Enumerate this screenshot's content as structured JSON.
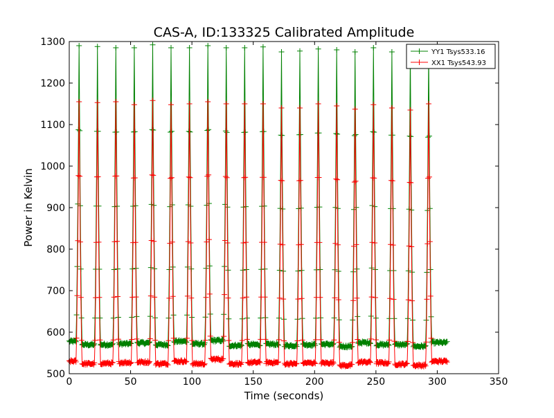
{
  "chart_data": {
    "type": "line",
    "title": "CAS-A, ID:133325 Calibrated Amplitude",
    "xlabel": "Time (seconds)",
    "ylabel": "Power in Kelvin",
    "xlim": [
      0,
      350
    ],
    "ylim": [
      500,
      1300
    ],
    "xticks": [
      "0",
      "50",
      "100",
      "150",
      "200",
      "250",
      "300",
      "350"
    ],
    "yticks": [
      "500",
      "600",
      "700",
      "800",
      "900",
      "1000",
      "1100",
      "1200",
      "1300"
    ],
    "grid": false,
    "legend_position": "top-right",
    "peak_times": [
      8,
      23,
      38,
      53,
      68,
      83,
      98,
      113,
      128,
      143,
      158,
      173,
      188,
      203,
      218,
      233,
      248,
      263,
      278,
      293
    ],
    "series": [
      {
        "name": "YY1 Tsys533.16",
        "color": "#008000",
        "baseline": [
          578,
          570,
          570,
          572,
          574,
          570,
          578,
          572,
          580,
          568,
          570,
          571,
          568,
          570,
          571,
          566,
          575,
          570,
          570,
          566,
          575
        ],
        "peaks": [
          1290,
          1288,
          1285,
          1285,
          1292,
          1285,
          1285,
          1290,
          1285,
          1285,
          1287,
          1275,
          1277,
          1282,
          1280,
          1275,
          1285,
          1275,
          1272,
          1270
        ],
        "x_end": 308
      },
      {
        "name": "XX1 Tsys543.93",
        "color": "#ff0000",
        "baseline": [
          530,
          524,
          525,
          527,
          528,
          524,
          530,
          524,
          535,
          524,
          527,
          527,
          524,
          526,
          526,
          520,
          528,
          526,
          523,
          520,
          530
        ],
        "peaks": [
          1155,
          1153,
          1155,
          1148,
          1158,
          1148,
          1150,
          1155,
          1150,
          1150,
          1150,
          1140,
          1140,
          1150,
          1145,
          1137,
          1148,
          1140,
          1135,
          1150
        ],
        "x_end": 308
      }
    ]
  }
}
